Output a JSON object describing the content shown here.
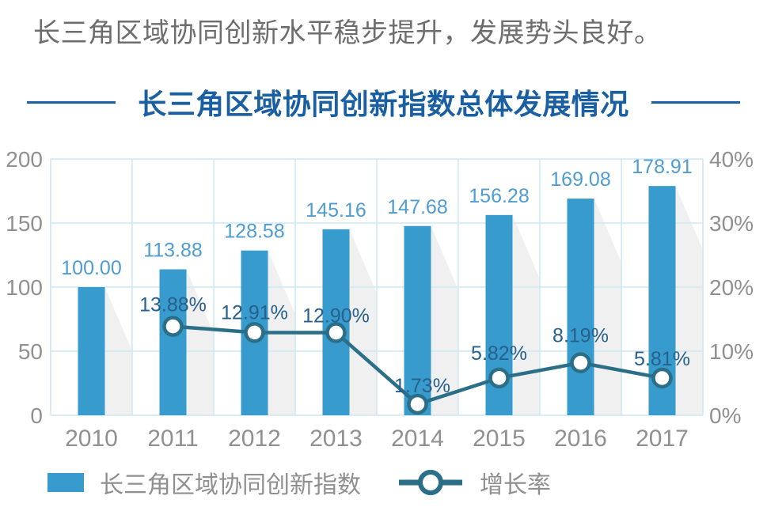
{
  "headline": "长三角区域协同创新水平稳步提升，发展势头良好。",
  "chart_title": "长三角区域协同创新指数总体发展情况",
  "colors": {
    "bar": "#389bce",
    "bar_shadow": "#f0f0f0",
    "line": "#2b6e87",
    "marker_fill": "#ffffff",
    "grid": "#cde7f3",
    "axis_text": "#909090",
    "value_label": "#4f9cd2",
    "pct_label": "#27608c",
    "title": "#1a5fa2",
    "headline_text": "#6d6d6d",
    "legend_text": "#8f8f8f"
  },
  "chart_data": {
    "type": "combo",
    "title": "长三角区域协同创新指数总体发展情况",
    "categories": [
      "2010",
      "2011",
      "2012",
      "2013",
      "2014",
      "2015",
      "2016",
      "2017"
    ],
    "series": [
      {
        "name": "长三角区域协同创新指数",
        "type": "bar",
        "axis": "left",
        "values": [
          100.0,
          113.88,
          128.58,
          145.16,
          147.68,
          156.28,
          169.08,
          178.91
        ],
        "labels": [
          "100.00",
          "113.88",
          "128.58",
          "145.16",
          "147.68",
          "156.28",
          "169.08",
          "178.91"
        ]
      },
      {
        "name": "增长率",
        "type": "line",
        "axis": "right",
        "values": [
          null,
          13.88,
          12.91,
          12.9,
          1.73,
          5.82,
          8.19,
          5.81
        ],
        "labels": [
          null,
          "13.88%",
          "12.91%",
          "12.90%",
          "1.73%",
          "5.82%",
          "8.19%",
          "5.81%"
        ]
      }
    ],
    "left_axis": {
      "range": [
        0,
        200
      ],
      "ticks": [
        "0",
        "50",
        "100",
        "150",
        "200"
      ]
    },
    "right_axis": {
      "range": [
        0,
        40
      ],
      "ticks": [
        "0%",
        "10%",
        "20%",
        "30%",
        "40%"
      ]
    },
    "grid": true,
    "legend_position": "bottom"
  }
}
